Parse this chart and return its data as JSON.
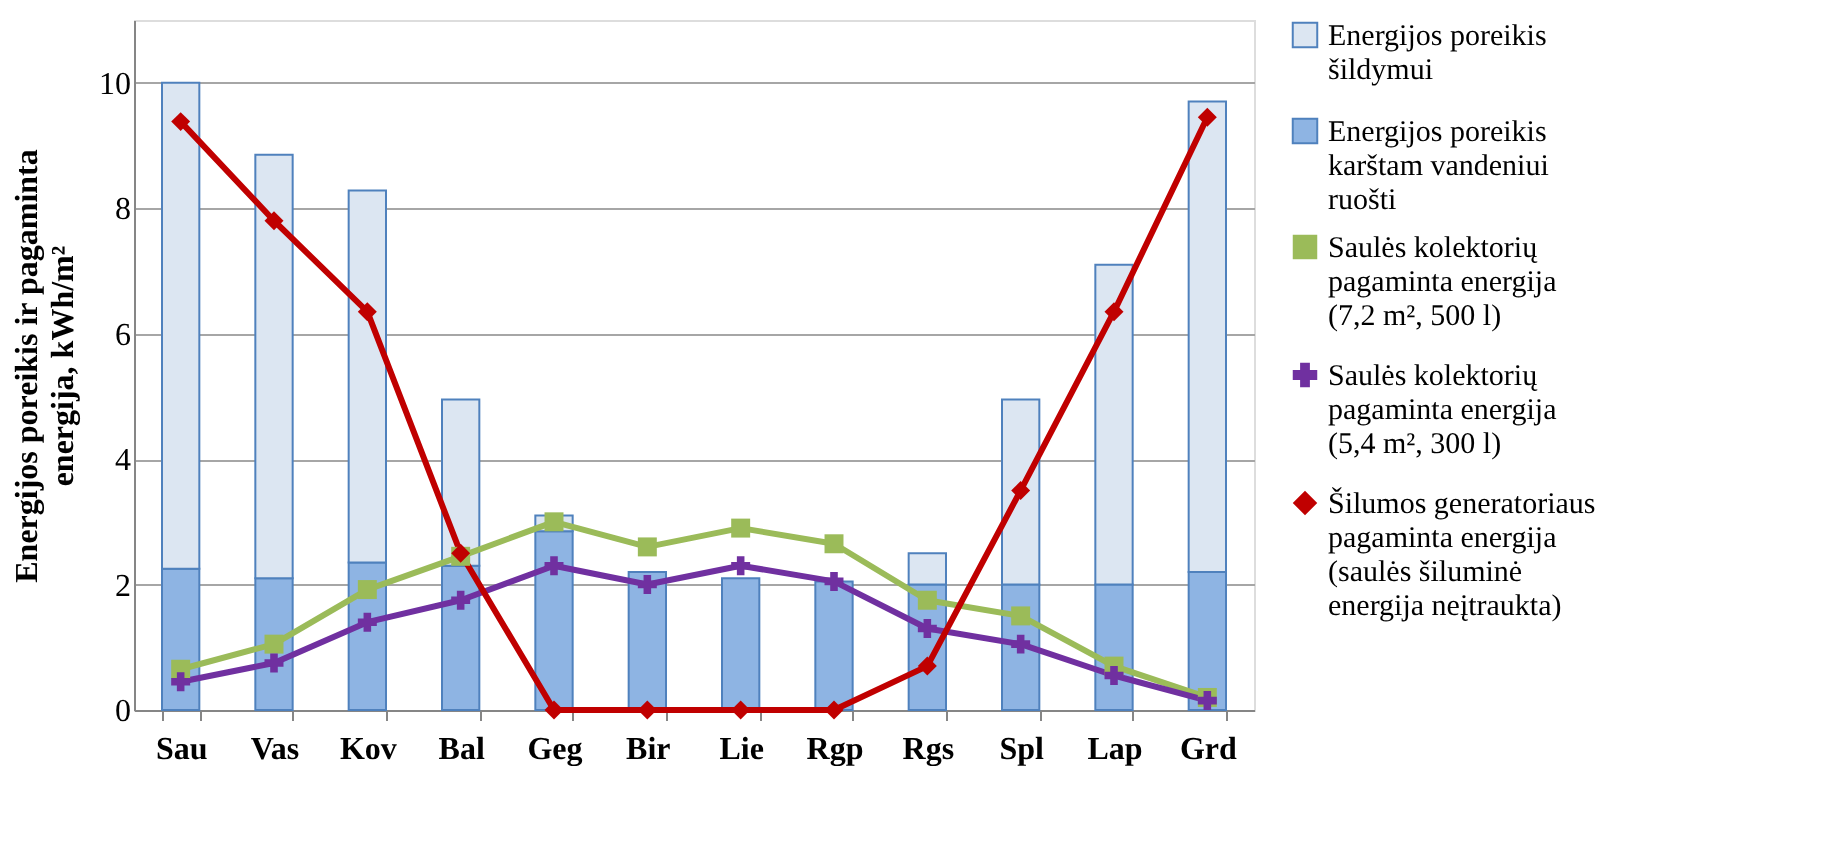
{
  "chart_data": {
    "type": "bar",
    "stacked": true,
    "ylabel": "Energijos poreikis ir pagaminta energija, kWh/m²",
    "categories": [
      "Sau",
      "Vas",
      "Kov",
      "Bal",
      "Geg",
      "Bir",
      "Lie",
      "Rgp",
      "Rgs",
      "Spl",
      "Lap",
      "Grd"
    ],
    "series": [
      {
        "name": "Energijos poreikis karštam vandeniui ruošti",
        "color": "#8eb4e3",
        "values": [
          2.25,
          2.1,
          2.35,
          2.3,
          2.85,
          2.2,
          2.1,
          2.05,
          2.0,
          2.0,
          2.0,
          2.2
        ]
      },
      {
        "name": "Energijos poreikis šildymui",
        "color": "#dce6f2",
        "values": [
          7.75,
          6.75,
          5.93,
          2.65,
          0.25,
          0,
          0,
          0,
          0.5,
          2.95,
          5.1,
          7.5
        ]
      },
      {
        "name": "Saulės kolektorių pagaminta energija (7,2 m², 500 l)",
        "type": "line",
        "marker": "square",
        "color": "#9bbb59",
        "values": [
          0.65,
          1.05,
          1.92,
          2.45,
          3.0,
          2.6,
          2.9,
          2.65,
          1.75,
          1.5,
          0.7,
          0.2
        ]
      },
      {
        "name": "Saulės kolektorių pagaminta energija (5,4 m², 300 l)",
        "type": "line",
        "marker": "cross",
        "color": "#7030a0",
        "values": [
          0.45,
          0.75,
          1.4,
          1.75,
          2.3,
          2.0,
          2.3,
          2.05,
          1.3,
          1.05,
          0.55,
          0.15
        ]
      },
      {
        "name": "Šilumos generatoriaus pagaminta energija (saulės šiluminė energija neįtraukta)",
        "type": "line",
        "marker": "diamond",
        "color": "#c00000",
        "values": [
          9.38,
          7.8,
          6.35,
          2.5,
          0,
          0,
          0,
          0,
          0.7,
          3.5,
          6.35,
          9.45
        ]
      }
    ],
    "ylim": [
      0,
      11
    ],
    "yticks": [
      0,
      2,
      4,
      6,
      8,
      10
    ],
    "grid": "y",
    "legend": "right"
  }
}
